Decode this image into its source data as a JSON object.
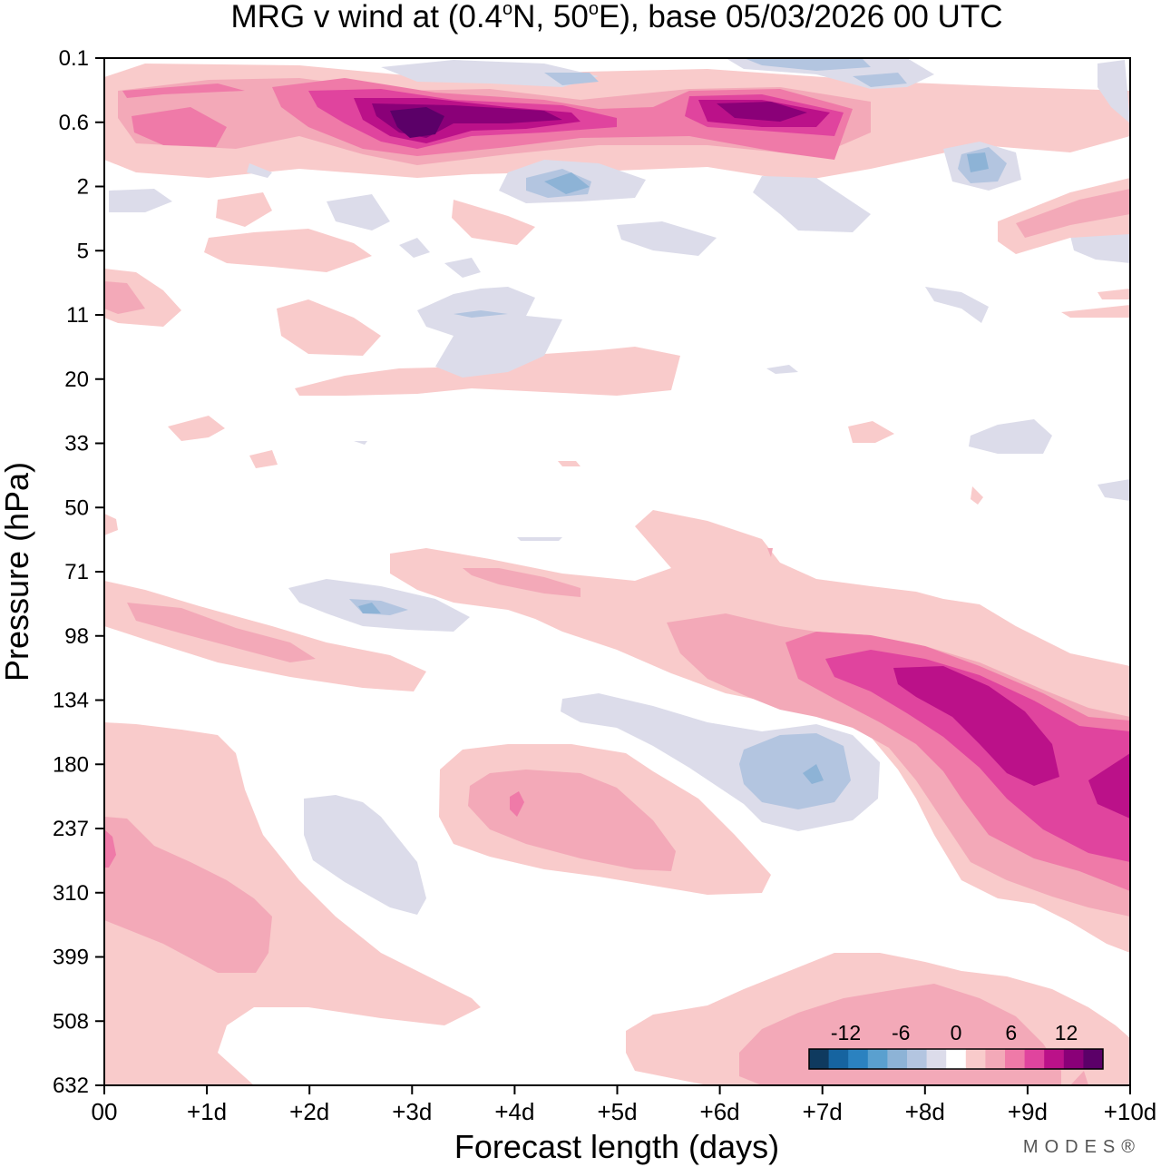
{
  "chart_data": {
    "type": "heatmap",
    "subtype": "filled-contour",
    "title": "MRG v wind at (0.4°N, 50°E),  base 05/03/2026  00 UTC",
    "title_parts": {
      "prefix": "MRG v wind at (0.4",
      "lat_unit": "N, 50",
      "lon_unit": "E),  base 05/03/2026  00 UTC",
      "degree_symbol": "o"
    },
    "xlabel": "Forecast length (days)",
    "ylabel": "Pressure (hPa)",
    "x_range_days": [
      0,
      10
    ],
    "x_ticks": [
      {
        "value": 0,
        "label": "00"
      },
      {
        "value": 1,
        "label": "+1d"
      },
      {
        "value": 2,
        "label": "+2d"
      },
      {
        "value": 3,
        "label": "+3d"
      },
      {
        "value": 4,
        "label": "+4d"
      },
      {
        "value": 5,
        "label": "+5d"
      },
      {
        "value": 6,
        "label": "+6d"
      },
      {
        "value": 7,
        "label": "+7d"
      },
      {
        "value": 8,
        "label": "+8d"
      },
      {
        "value": 9,
        "label": "+9d"
      },
      {
        "value": 10,
        "label": "+10d"
      }
    ],
    "y_levels_hPa": [
      "0.1",
      "0.6",
      "2",
      "5",
      "11",
      "20",
      "33",
      "50",
      "71",
      "98",
      "134",
      "180",
      "237",
      "310",
      "399",
      "508",
      "632"
    ],
    "y_axis_inverted": true,
    "contour_interval": 2,
    "colorbar": {
      "levels": [
        -16,
        -14,
        -12,
        -10,
        -8,
        -6,
        -4,
        -2,
        2,
        4,
        6,
        8,
        10,
        12,
        14,
        16
      ],
      "labels": [
        "-12",
        "-6",
        "0",
        "6",
        "12"
      ],
      "label_values": [
        -12,
        -6,
        0,
        6,
        12
      ],
      "colors": [
        "#0f3a5f",
        "#1664a0",
        "#2b82c0",
        "#5aa0cf",
        "#8db3d6",
        "#b3c5e0",
        "#dcdcea",
        "#ffffff",
        "#f9cbcb",
        "#f3a9b8",
        "#ef7aa8",
        "#e0449e",
        "#bb1189",
        "#8a0078",
        "#5b0068"
      ]
    },
    "features": [
      {
        "name": "upper-stratosphere positive band",
        "level_range_hPa": [
          0.1,
          2
        ],
        "x_range_days": [
          0,
          9.7
        ],
        "peak": 16,
        "peak_day": 3,
        "peak_level_hPa": 0.6
      },
      {
        "name": "upper-stratosphere secondary max",
        "level_range_hPa": [
          0.3,
          1.2
        ],
        "x_range_days": [
          5.5,
          7.5
        ],
        "peak": 14,
        "peak_day": 6.5,
        "peak_level_hPa": 0.6
      },
      {
        "name": "upper-stratosphere negative cell",
        "level_range_hPa": [
          1,
          3
        ],
        "x_range_days": [
          4,
          5.2
        ],
        "peak": -8,
        "peak_day": 4.5,
        "peak_level_hPa": 2
      },
      {
        "name": "tropopause positive band",
        "level_range_hPa": [
          71,
          310
        ],
        "x_range_days": [
          5,
          10
        ],
        "peak": 14,
        "peak_day": 8.5,
        "peak_level_hPa": 150
      },
      {
        "name": "mid-troposphere negative cell",
        "level_range_hPa": [
          134,
          237
        ],
        "x_range_days": [
          4.5,
          7.6
        ],
        "peak": -8,
        "peak_day": 7,
        "peak_level_hPa": 180
      },
      {
        "name": "mid-troposphere positive cell",
        "level_range_hPa": [
          180,
          310
        ],
        "x_range_days": [
          3.3,
          6.5
        ],
        "peak": 8,
        "peak_day": 4,
        "peak_level_hPa": 220
      },
      {
        "name": "lower-troposphere positive region",
        "level_range_hPa": [
          134,
          632
        ],
        "x_range_days": [
          0,
          3.5
        ],
        "peak": 10,
        "peak_day": 0,
        "peak_level_hPa": 237
      },
      {
        "name": "surface positive region",
        "level_range_hPa": [
          399,
          632
        ],
        "x_range_days": [
          5.2,
          10
        ],
        "peak": 6,
        "peak_day": 7,
        "peak_level_hPa": 632
      }
    ]
  },
  "branding": {
    "logo": "MODES®"
  }
}
